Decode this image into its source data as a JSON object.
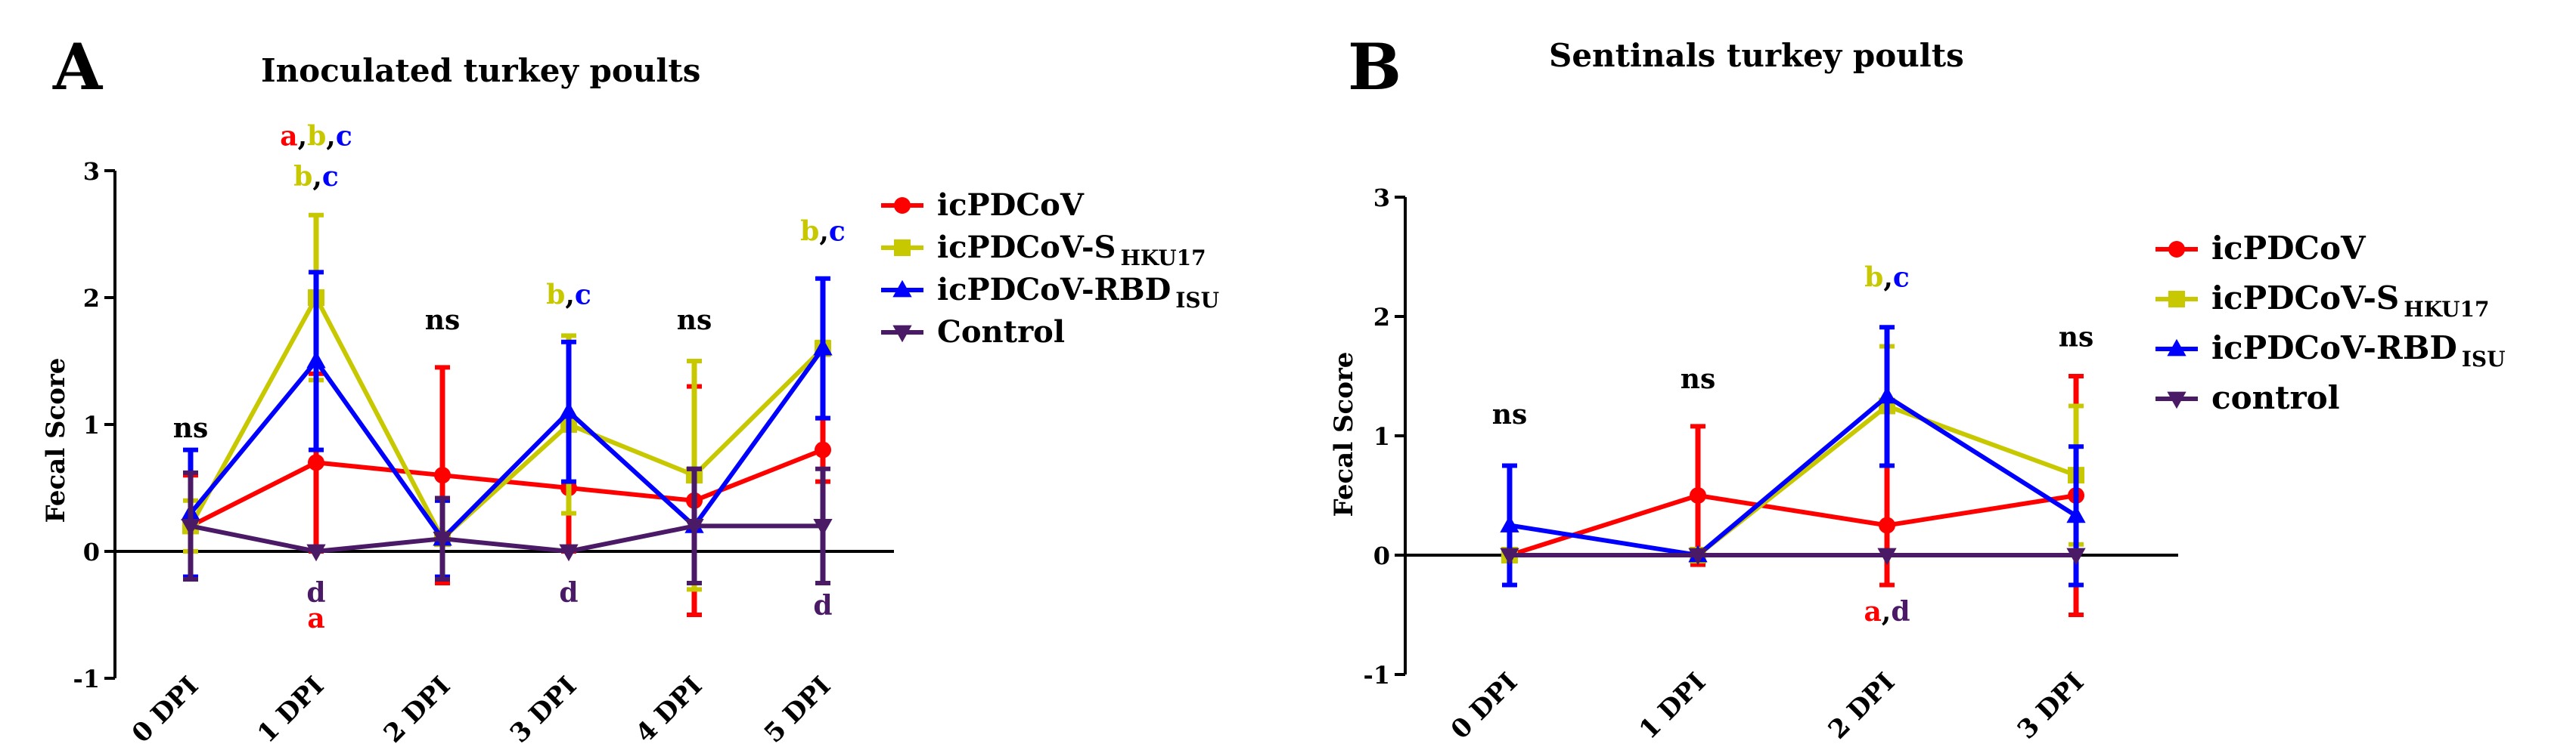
{
  "colors": {
    "icPDCoV": "#ff0000",
    "icPDCoV-S": "#c8c800",
    "icPDCoV-RBD": "#0000ff",
    "control": "#4b1a66",
    "axis": "#000000"
  },
  "chart_data": [
    {
      "type": "line",
      "panel_letter": "A",
      "title": "Inoculated turkey poults",
      "ylabel": "Fecal Score",
      "xlabel": "",
      "ylim": [
        -1,
        3
      ],
      "yticks": [
        "-1",
        "0",
        "1",
        "2",
        "3"
      ],
      "categories": [
        "0 DPI",
        "1 DPI",
        "2 DPI",
        "3 DPI",
        "4 DPI",
        "5 DPI"
      ],
      "legend": [
        {
          "key": "icPDCoV",
          "text": "icPDCoV",
          "sub": "",
          "marker": "circle"
        },
        {
          "key": "icPDCoV-S",
          "text": "icPDCoV-S",
          "sub": "HKU17",
          "marker": "square"
        },
        {
          "key": "icPDCoV-RBD",
          "text": "icPDCoV-RBD",
          "sub": "ISU",
          "marker": "triangle"
        },
        {
          "key": "control",
          "text": "Control",
          "sub": "",
          "marker": "triangle-down"
        }
      ],
      "series": [
        {
          "key": "icPDCoV",
          "name": "icPDCoV",
          "values": [
            0.2,
            0.7,
            0.6,
            0.5,
            0.4,
            0.8
          ],
          "err": [
            0.4,
            0.7,
            0.85,
            0.5,
            0.9,
            0.25
          ]
        },
        {
          "key": "icPDCoV-S",
          "name": "icPDCoV-S HKU17",
          "values": [
            0.2,
            2.0,
            0.1,
            1.0,
            0.6,
            1.6
          ],
          "err": [
            0.2,
            0.65,
            0.3,
            0.7,
            0.9,
            0.05
          ]
        },
        {
          "key": "icPDCoV-RBD",
          "name": "icPDCoV-RBD ISU",
          "values": [
            0.3,
            1.5,
            0.1,
            1.1,
            0.2,
            1.6
          ],
          "err": [
            0.5,
            0.7,
            0.3,
            0.55,
            0.45,
            0.55
          ]
        },
        {
          "key": "control",
          "name": "Control",
          "values": [
            0.2,
            0.0,
            0.1,
            0.0,
            0.2,
            0.2
          ],
          "err": [
            0.42,
            0.0,
            0.32,
            0.0,
            0.45,
            0.45
          ]
        }
      ],
      "annotations": [
        {
          "index": 0,
          "level": 0.9,
          "parts": [
            {
              "t": "ns",
              "c": "axis"
            }
          ]
        },
        {
          "index": 1,
          "level": 3.2,
          "parts": [
            {
              "t": "a",
              "c": "icPDCoV"
            },
            {
              "t": ",",
              "c": "axis"
            },
            {
              "t": "b",
              "c": "icPDCoV-S"
            },
            {
              "t": ",",
              "c": "axis"
            },
            {
              "t": "c",
              "c": "icPDCoV-RBD"
            }
          ]
        },
        {
          "index": 1,
          "level": 2.88,
          "parts": [
            {
              "t": "b",
              "c": "icPDCoV-S"
            },
            {
              "t": ",",
              "c": "axis"
            },
            {
              "t": "c",
              "c": "icPDCoV-RBD"
            }
          ]
        },
        {
          "index": 1,
          "level": -0.4,
          "parts": [
            {
              "t": "d",
              "c": "control"
            }
          ]
        },
        {
          "index": 1,
          "level": -0.6,
          "parts": [
            {
              "t": "a",
              "c": "icPDCoV"
            }
          ]
        },
        {
          "index": 2,
          "level": 1.75,
          "parts": [
            {
              "t": "ns",
              "c": "axis"
            }
          ]
        },
        {
          "index": 3,
          "level": 1.95,
          "parts": [
            {
              "t": "b",
              "c": "icPDCoV-S"
            },
            {
              "t": ",",
              "c": "axis"
            },
            {
              "t": "c",
              "c": "icPDCoV-RBD"
            }
          ]
        },
        {
          "index": 3,
          "level": -0.4,
          "parts": [
            {
              "t": "d",
              "c": "control"
            }
          ]
        },
        {
          "index": 4,
          "level": 1.75,
          "parts": [
            {
              "t": "ns",
              "c": "axis"
            }
          ]
        },
        {
          "index": 5,
          "level": 2.45,
          "parts": [
            {
              "t": "b",
              "c": "icPDCoV-S"
            },
            {
              "t": ",",
              "c": "axis"
            },
            {
              "t": "c",
              "c": "icPDCoV-RBD"
            }
          ]
        },
        {
          "index": 5,
          "level": -0.5,
          "parts": [
            {
              "t": "d",
              "c": "control"
            }
          ]
        }
      ]
    },
    {
      "type": "line",
      "panel_letter": "B",
      "title": "Sentinals turkey poults",
      "ylabel": "Fecal Score",
      "xlabel": "",
      "ylim": [
        -1,
        3
      ],
      "yticks": [
        "-1",
        "0",
        "1",
        "2",
        "3"
      ],
      "categories": [
        "0 DPI",
        "1 DPI",
        "2 DPI",
        "3 DPI"
      ],
      "legend": [
        {
          "key": "icPDCoV",
          "text": "icPDCoV",
          "sub": "",
          "marker": "circle"
        },
        {
          "key": "icPDCoV-S",
          "text": "icPDCoV-S",
          "sub": "HKU17",
          "marker": "square"
        },
        {
          "key": "icPDCoV-RBD",
          "text": "icPDCoV-RBD",
          "sub": "ISU",
          "marker": "triangle"
        },
        {
          "key": "control",
          "text": "control",
          "sub": "",
          "marker": "triangle-down"
        }
      ],
      "series": [
        {
          "key": "icPDCoV",
          "name": "icPDCoV",
          "values": [
            0.0,
            0.5,
            0.25,
            0.5
          ],
          "err": [
            0.0,
            0.58,
            0.5,
            1.0
          ]
        },
        {
          "key": "icPDCoV-S",
          "name": "icPDCoV-S HKU17",
          "values": [
            0.0,
            0.0,
            1.25,
            0.67
          ],
          "err": [
            0.0,
            0.0,
            0.5,
            0.58
          ]
        },
        {
          "key": "icPDCoV-RBD",
          "name": "icPDCoV-RBD ISU",
          "values": [
            0.25,
            0.0,
            1.33,
            0.33
          ],
          "err": [
            0.5,
            0.0,
            0.58,
            0.58
          ]
        },
        {
          "key": "control",
          "name": "control",
          "values": [
            0.0,
            0.0,
            0.0,
            0.0
          ],
          "err": [
            0.0,
            0.0,
            0.0,
            0.0
          ]
        }
      ],
      "annotations": [
        {
          "index": 0,
          "level": 1.1,
          "parts": [
            {
              "t": "ns",
              "c": "axis"
            }
          ]
        },
        {
          "index": 1,
          "level": 1.4,
          "parts": [
            {
              "t": "ns",
              "c": "axis"
            }
          ]
        },
        {
          "index": 2,
          "level": 2.25,
          "parts": [
            {
              "t": "b",
              "c": "icPDCoV-S"
            },
            {
              "t": ",",
              "c": "axis"
            },
            {
              "t": "c",
              "c": "icPDCoV-RBD"
            }
          ]
        },
        {
          "index": 2,
          "level": -0.55,
          "parts": [
            {
              "t": "a",
              "c": "icPDCoV"
            },
            {
              "t": ",",
              "c": "axis"
            },
            {
              "t": "d",
              "c": "control"
            }
          ]
        },
        {
          "index": 3,
          "level": 1.75,
          "parts": [
            {
              "t": "ns",
              "c": "axis"
            }
          ]
        }
      ]
    }
  ]
}
